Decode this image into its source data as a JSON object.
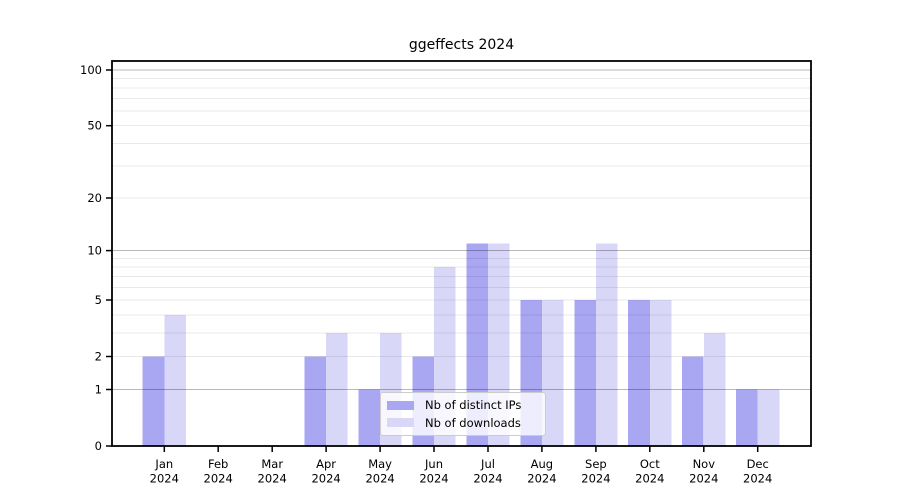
{
  "chart_data": {
    "type": "bar",
    "title": "ggeffects 2024",
    "categories": [
      "Jan",
      "Feb",
      "Mar",
      "Apr",
      "May",
      "Jun",
      "Jul",
      "Aug",
      "Sep",
      "Oct",
      "Nov",
      "Dec"
    ],
    "year_label": "2024",
    "series": [
      {
        "name": "Nb of distinct IPs",
        "color": "#a9a6f2",
        "values": [
          2,
          0,
          0,
          2,
          1,
          2,
          11,
          5,
          5,
          5,
          2,
          1
        ]
      },
      {
        "name": "Nb of downloads",
        "color": "#d9d7f8",
        "values": [
          4,
          0,
          0,
          3,
          3,
          8,
          11,
          5,
          11,
          5,
          3,
          1
        ]
      }
    ],
    "yscale": "log1p",
    "xlabel": "",
    "ylabel": "",
    "y_ticks": [
      0,
      1,
      2,
      5,
      10,
      20,
      50,
      100
    ],
    "y_major_gridlines": [
      1,
      10,
      100
    ],
    "y_minor_gridlines": [
      2,
      3,
      4,
      5,
      6,
      7,
      8,
      9,
      20,
      30,
      40,
      50,
      60,
      70,
      80,
      90
    ],
    "ylim": [
      0,
      112
    ],
    "grid": "horizontal",
    "legend_position": "lower center"
  },
  "colors": {
    "axis": "#000000",
    "major_grid": "#b8b8b8",
    "minor_grid": "#e9e9ec",
    "legend_border": "#cccccc",
    "background": "#ffffff"
  }
}
